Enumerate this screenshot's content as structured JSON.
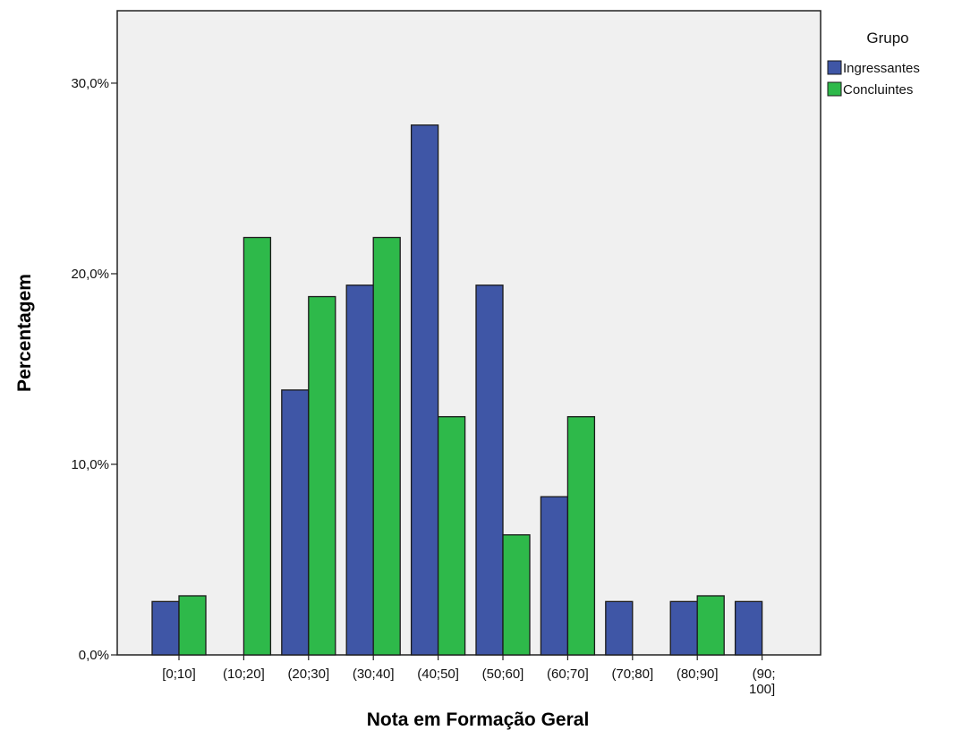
{
  "chart_data": {
    "type": "bar",
    "title": "",
    "xlabel": "Nota em Formação Geral",
    "ylabel": "Percentagem",
    "categories": [
      "[0;10]",
      "(10;20]",
      "(20;30]",
      "(30;40]",
      "(40;50]",
      "(50;60]",
      "(60;70]",
      "(70;80]",
      "(80;90]",
      "(90; 100]"
    ],
    "series": [
      {
        "name": "Ingressantes",
        "color": "#3f56a6",
        "values": [
          2.8,
          0,
          13.9,
          19.4,
          27.8,
          19.4,
          8.3,
          2.8,
          2.8,
          2.8
        ]
      },
      {
        "name": "Concluintes",
        "color": "#2eb94a",
        "values": [
          3.1,
          21.9,
          18.8,
          21.9,
          12.5,
          6.3,
          12.5,
          0,
          3.1,
          0
        ]
      }
    ],
    "ylim": [
      0,
      33.8
    ],
    "yticks": [
      {
        "value": 0,
        "label": "0,0%"
      },
      {
        "value": 10,
        "label": "10,0%"
      },
      {
        "value": 20,
        "label": "20,0%"
      },
      {
        "value": 30,
        "label": "30,0%"
      }
    ],
    "grid": false,
    "legend": {
      "title": "Grupo",
      "placement": "right"
    },
    "plot_background": "#f0f0f0"
  }
}
